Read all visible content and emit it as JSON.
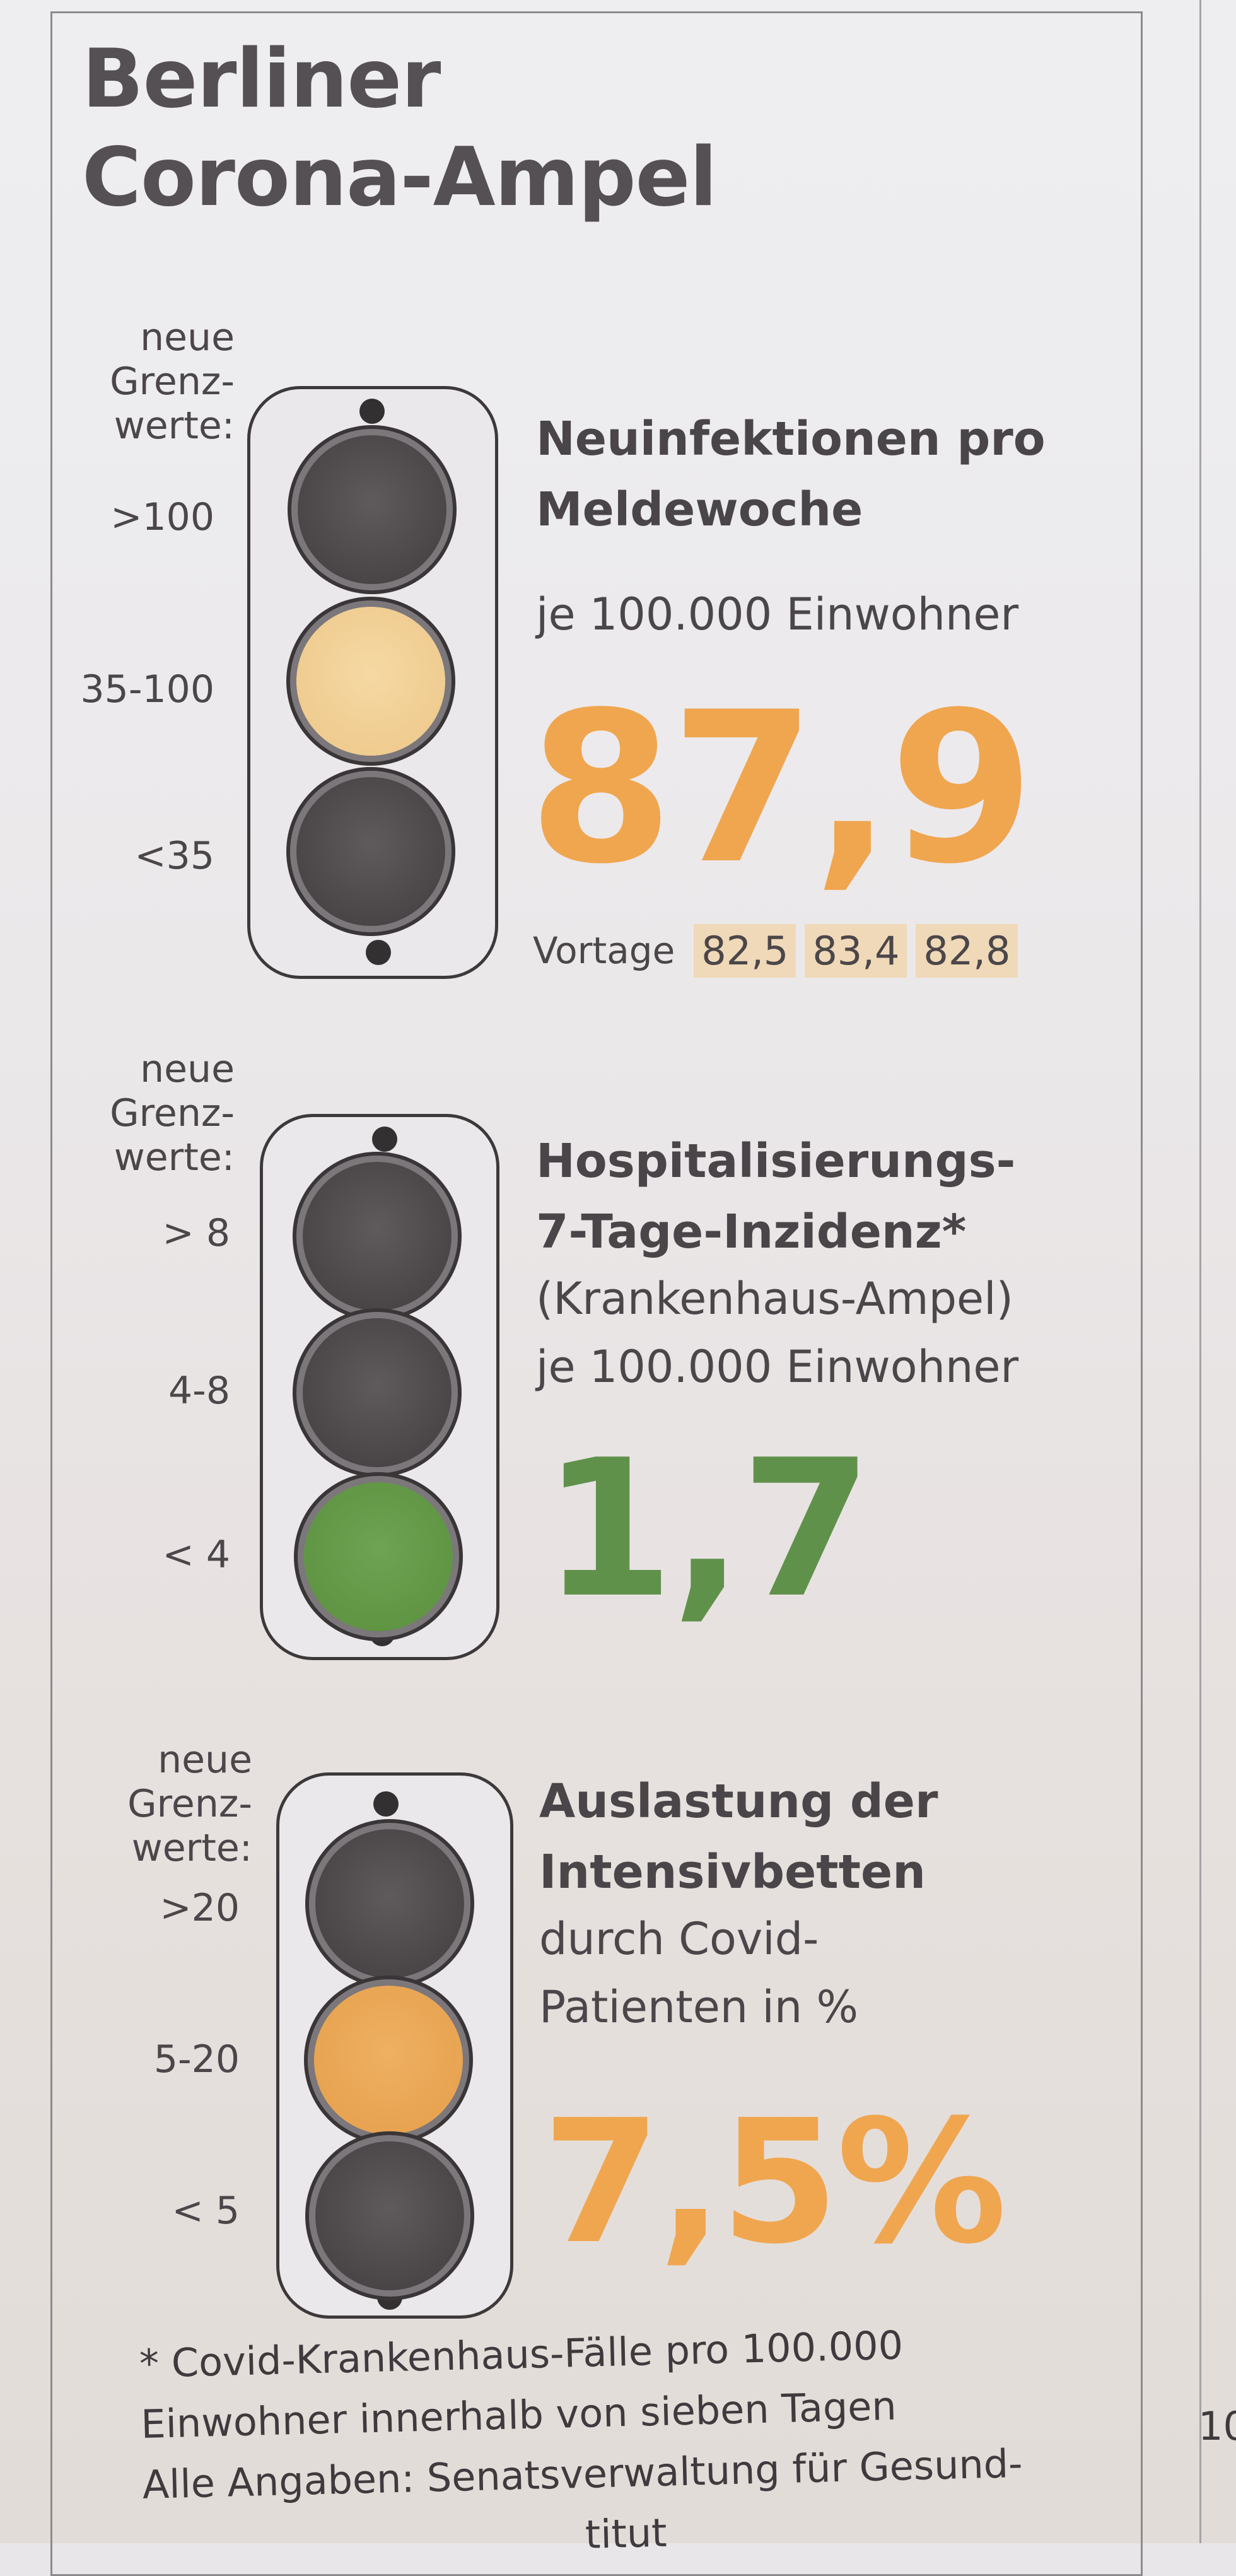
{
  "title": [
    "Berliner",
    "Corona-Ampel"
  ],
  "colors": {
    "orange": "#f0a64f",
    "green": "#60914b",
    "amber_light": "#efcb8f",
    "amber_lamp": "#e7a350",
    "green_lamp": "#5f9443"
  },
  "lights": [
    {
      "neue": [
        "neue",
        "Grenz-",
        "werte:"
      ],
      "thresholds": [
        ">100",
        "35-100",
        "<35"
      ],
      "active": "middle",
      "heading": [
        "Neuinfektionen pro",
        "Meldewoche"
      ],
      "sub": [
        "je 100.000 Einwohner"
      ],
      "value": "87,9",
      "vortage_label": "Vortage",
      "vortage_values": [
        "82,5",
        "83,4",
        "82,8"
      ]
    },
    {
      "neue": [
        "neue",
        "Grenz-",
        "werte:"
      ],
      "thresholds": [
        "> 8",
        "4-8",
        "< 4"
      ],
      "active": "bottom",
      "heading": [
        "Hospitalisierungs-",
        "7-Tage-Inzidenz*"
      ],
      "sub": [
        "(Krankenhaus-Ampel)",
        "je 100.000 Einwohner"
      ],
      "value": "1,7"
    },
    {
      "neue": [
        "neue",
        "Grenz-",
        "werte:"
      ],
      "thresholds": [
        ">20",
        "5-20",
        "< 5"
      ],
      "active": "middle",
      "heading": [
        "Auslastung der",
        "Intensivbetten"
      ],
      "sub": [
        "durch Covid-",
        "Patienten in %"
      ],
      "value": "7,5%"
    }
  ],
  "footnote": [
    "* Covid-Krankenhaus-Fälle pro 100.000",
    "Einwohner innerhalb von sieben Tagen",
    "Alle Angaben: Senatsverwaltung für Gesund-",
    "titut"
  ],
  "page_number_partial": "10"
}
